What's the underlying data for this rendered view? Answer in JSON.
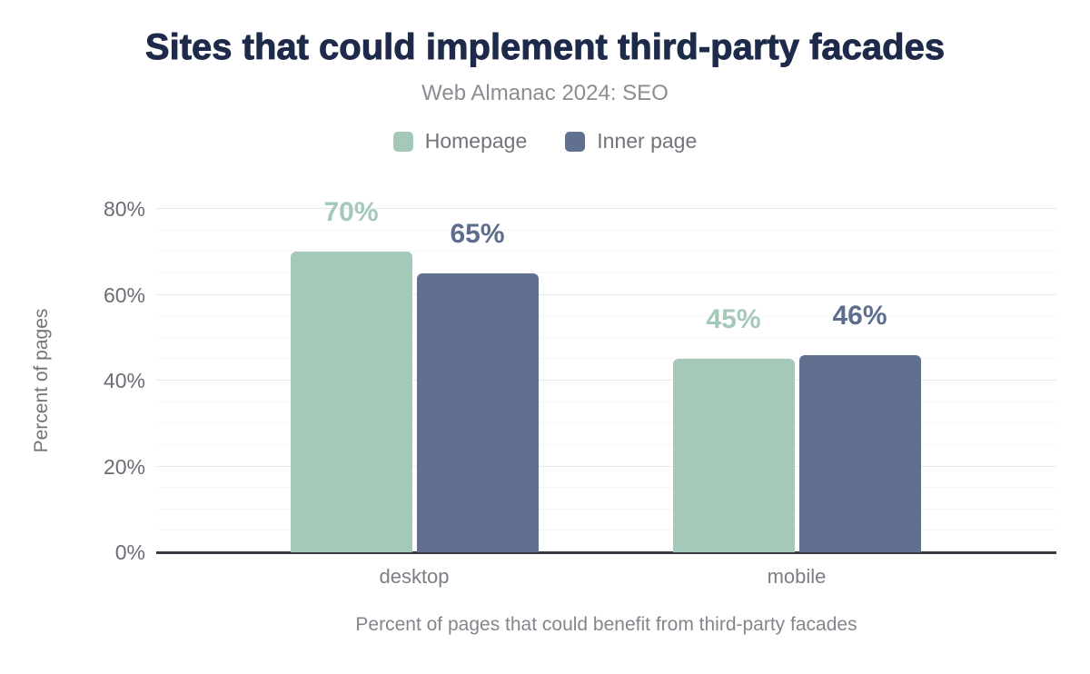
{
  "chart_data": {
    "type": "bar",
    "title": "Sites that could implement third-party facades",
    "subtitle": "Web Almanac 2024: SEO",
    "categories": [
      "desktop",
      "mobile"
    ],
    "series": [
      {
        "name": "Homepage",
        "values": [
          70,
          45
        ],
        "color": "#a5c9b9",
        "label_color": "#a5c9b9"
      },
      {
        "name": "Inner page",
        "values": [
          65,
          46
        ],
        "color": "#60708e",
        "label_color": "#5d6e8c"
      }
    ],
    "value_label_format": "percent",
    "xlabel": "Percent of pages that could benefit from third-party facades",
    "ylabel": "Percent of pages",
    "ylim": [
      0,
      80
    ],
    "yticks": [
      0,
      20,
      40,
      60,
      80
    ],
    "ytick_labels": [
      "0%",
      "20%",
      "40%",
      "60%",
      "80%"
    ],
    "minor_grid_step": 5,
    "grid": true,
    "legend_position": "top"
  },
  "colors": {
    "title": "#1e2a4a",
    "subtitle": "#8c8c93",
    "axis_line": "#3a3a42",
    "major_gridline": "#e9e9e9",
    "minor_gridline": "#f6f6f6",
    "tick_text": "#6c6c75",
    "homepage_green": "#a5c9b9",
    "inner_page_slate": "#60708e"
  }
}
